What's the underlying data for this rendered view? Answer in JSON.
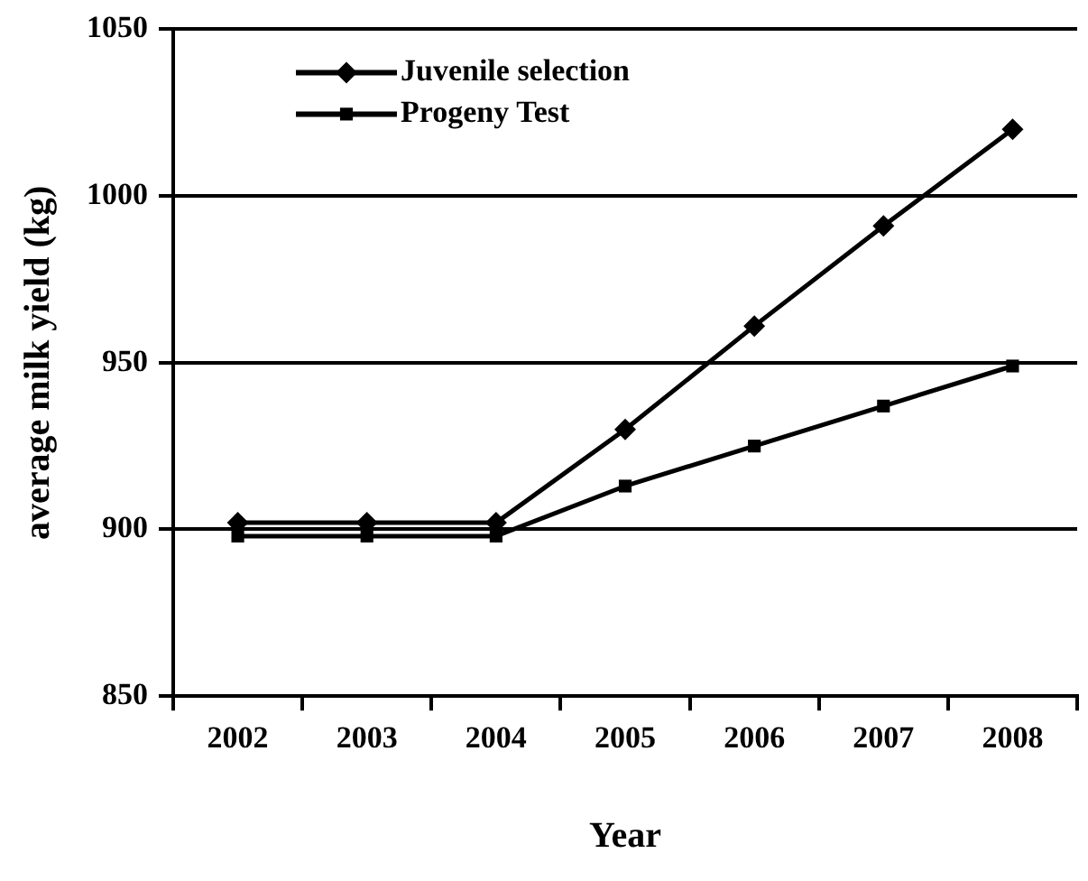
{
  "chart_data": {
    "type": "line",
    "xlabel": "Year",
    "ylabel": "average milk yield (kg)",
    "categories": [
      "2002",
      "2003",
      "2004",
      "2005",
      "2006",
      "2007",
      "2008"
    ],
    "series": [
      {
        "name": "Juvenile selection",
        "color": "#000000",
        "marker": "diamond",
        "values": [
          902,
          902,
          902,
          930,
          961,
          991,
          1020
        ]
      },
      {
        "name": "Progeny Test",
        "color": "#000000",
        "marker": "square",
        "values": [
          898,
          898,
          898,
          913,
          925,
          937,
          949
        ]
      }
    ],
    "ylim": [
      850,
      1050
    ],
    "yticks": [
      850,
      900,
      950,
      1000,
      1050
    ],
    "grid": "y",
    "legend": "top left",
    "line_style": "solid"
  }
}
